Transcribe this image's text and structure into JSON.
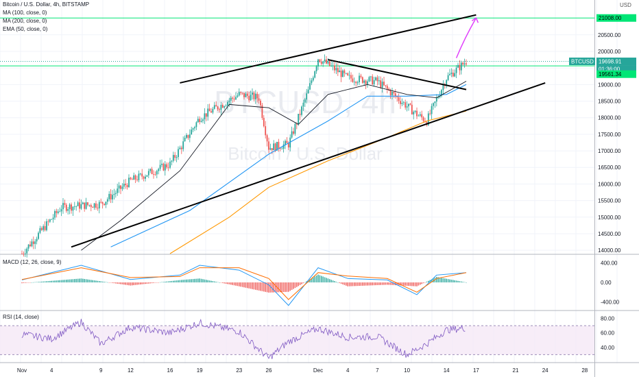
{
  "header": {
    "title": "Bitcoin / U.S. Dollar, 4h, BITSTAMP",
    "indicators": [
      "MA (100, close, 0)",
      "MA (200, close, 0)",
      "EMA (50, close, 0)"
    ],
    "currency": "USD"
  },
  "watermark": {
    "symbol": "BTCUSD, 4h",
    "name": "Bitcoin / U.S. Dollar"
  },
  "colors": {
    "up": "#26a69a",
    "down": "#ef5350",
    "ma100": "#2196f3",
    "ma200": "#ff9800",
    "ema50": "#131722",
    "macd": "#2196f3",
    "signal": "#ff6d00",
    "rsi": "#7e57c2",
    "target_line": "#00e676",
    "arrow": "#e040fb",
    "price_label": "#26a69a"
  },
  "price_labels": {
    "current": {
      "symbol": "BTCUSD",
      "price": "19698.91",
      "countdown": "01:36:00"
    },
    "level_green": "19561.34",
    "target": "21008.00"
  },
  "panes": {
    "macd": {
      "title": "MACD (12, 26, close, 9)"
    },
    "rsi": {
      "title": "RSI (14, close)"
    }
  },
  "x_axis": [
    "Nov",
    "4",
    "9",
    "12",
    "16",
    "19",
    "23",
    "26",
    "Dec",
    "4",
    "7",
    "10",
    "14",
    "17",
    "21",
    "24",
    "28"
  ],
  "chart_data": [
    {
      "type": "candlestick",
      "title": "Bitcoin / U.S. Dollar, 4h, BITSTAMP",
      "y_unit": "USD",
      "y_ticks": [
        14000,
        14500,
        15000,
        15500,
        16000,
        16500,
        17000,
        17500,
        18000,
        18500,
        19000,
        19500,
        20000,
        20500
      ],
      "ylim": [
        13900,
        21550
      ],
      "series": [
        {
          "name": "MA (100, close, 0)",
          "x": [
            "Nov 10",
            "Nov 18",
            "Nov 26",
            "Dec 2",
            "Dec 6",
            "Dec 10",
            "Dec 14",
            "Dec 16"
          ],
          "values": [
            14100,
            15200,
            16900,
            17900,
            18650,
            18650,
            18700,
            19000
          ]
        },
        {
          "name": "MA (200, close, 0)",
          "x": [
            "Nov 16",
            "Nov 22",
            "Nov 26",
            "Dec 2",
            "Dec 8",
            "Dec 12",
            "Dec 16"
          ],
          "values": [
            13900,
            15000,
            15900,
            16700,
            17400,
            17900,
            18200
          ]
        },
        {
          "name": "EMA (50, close, 0)",
          "x": [
            "Nov 7",
            "Nov 11",
            "Nov 17",
            "Nov 22",
            "Nov 26",
            "Nov 29",
            "Dec 2",
            "Dec 6",
            "Dec 10",
            "Dec 13",
            "Dec 16"
          ],
          "values": [
            14000,
            14900,
            16400,
            18400,
            18300,
            17800,
            18700,
            19000,
            18700,
            18600,
            19100
          ]
        },
        {
          "name": "Price (approx. closes)",
          "x": [
            "Nov 1",
            "Nov 5",
            "Nov 9",
            "Nov 12",
            "Nov 16",
            "Nov 19",
            "Nov 23",
            "Nov 25",
            "Nov 26",
            "Nov 28",
            "Nov 30",
            "Dec 1",
            "Dec 4",
            "Dec 7",
            "Dec 9",
            "Dec 11",
            "Dec 12",
            "Dec 14",
            "Dec 16"
          ],
          "values": [
            13900,
            15300,
            15400,
            16100,
            16600,
            18000,
            18700,
            18600,
            17100,
            17200,
            18800,
            19800,
            19200,
            19100,
            18600,
            18100,
            17900,
            19200,
            19699
          ]
        }
      ],
      "annotations": [
        {
          "name": "channel-top",
          "from": [
            "Nov 17",
            19050
          ],
          "to": [
            "Dec 17",
            21100
          ]
        },
        {
          "name": "channel-bottom",
          "from": [
            "Nov 6",
            14100
          ],
          "to": [
            "Dec 24",
            19050
          ]
        },
        {
          "name": "descending-trendline",
          "from": [
            "Dec 2",
            19750
          ],
          "to": [
            "Dec 16",
            18850
          ]
        },
        {
          "name": "target-arrow",
          "from": [
            "Dec 15",
            19800
          ],
          "to": [
            "Dec 17",
            21008
          ]
        },
        {
          "name": "target-line",
          "y": 21008
        },
        {
          "name": "level-line",
          "y": 19561.34
        }
      ]
    },
    {
      "type": "line",
      "title": "MACD (12, 26, close, 9)",
      "y_ticks": [
        400,
        0,
        -400
      ],
      "ylim": [
        -560,
        560
      ],
      "series": [
        {
          "name": "MACD",
          "x": [
            "Nov 1",
            "Nov 7",
            "Nov 12",
            "Nov 17",
            "Nov 19",
            "Nov 23",
            "Nov 26",
            "Nov 28",
            "Dec 1",
            "Dec 4",
            "Dec 8",
            "Dec 11",
            "Dec 13",
            "Dec 16"
          ],
          "values": [
            50,
            350,
            60,
            150,
            350,
            250,
            -50,
            -470,
            300,
            80,
            50,
            -250,
            150,
            200
          ]
        },
        {
          "name": "Signal",
          "x": [
            "Nov 1",
            "Nov 7",
            "Nov 12",
            "Nov 17",
            "Nov 19",
            "Nov 23",
            "Nov 26",
            "Nov 28",
            "Dec 1",
            "Dec 4",
            "Dec 8",
            "Dec 11",
            "Dec 13",
            "Dec 16"
          ],
          "values": [
            60,
            300,
            100,
            120,
            300,
            300,
            80,
            -350,
            200,
            130,
            80,
            -200,
            80,
            200
          ]
        }
      ]
    },
    {
      "type": "line",
      "title": "RSI (14, close)",
      "y_ticks": [
        80,
        60,
        40
      ],
      "ylim": [
        20,
        90
      ],
      "series": [
        {
          "name": "RSI",
          "x": [
            "Nov 1",
            "Nov 4",
            "Nov 7",
            "Nov 9",
            "Nov 12",
            "Nov 16",
            "Nov 19",
            "Nov 23",
            "Nov 26",
            "Nov 28",
            "Dec 1",
            "Dec 4",
            "Dec 7",
            "Dec 10",
            "Dec 12",
            "Dec 14",
            "Dec 16"
          ],
          "values": [
            58,
            52,
            75,
            45,
            68,
            60,
            74,
            62,
            25,
            48,
            66,
            54,
            55,
            30,
            45,
            64,
            67
          ]
        }
      ]
    }
  ]
}
